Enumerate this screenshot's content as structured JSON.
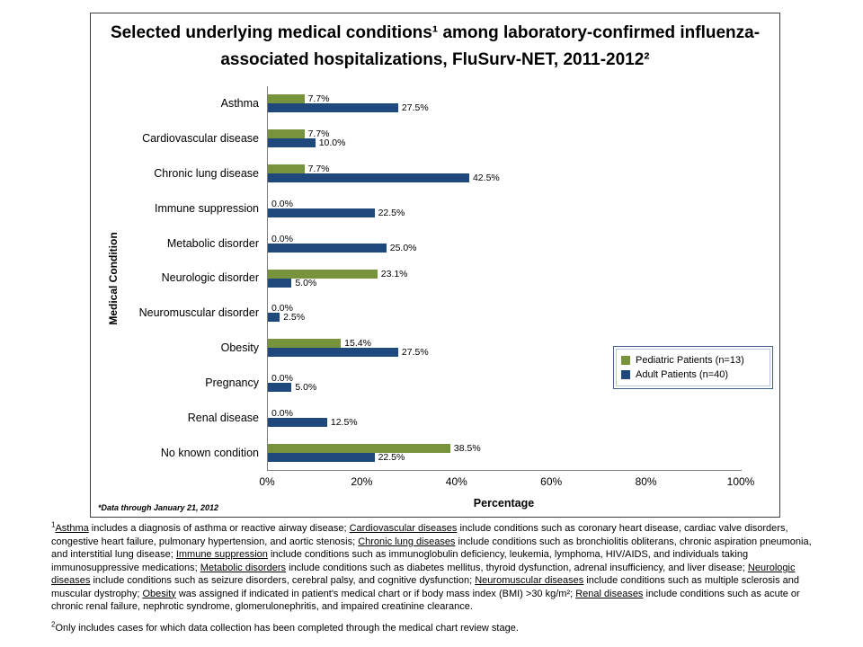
{
  "chart_data": {
    "type": "bar",
    "orientation": "horizontal",
    "title": "Selected underlying medical conditions¹ among laboratory-confirmed influenza-associated hospitalizations, FluSurv-NET, 2011-2012²",
    "xlabel": "Percentage",
    "ylabel": "Medical Condition",
    "xlim": [
      0,
      100
    ],
    "xtick_labels": [
      "0%",
      "20%",
      "40%",
      "60%",
      "80%",
      "100%"
    ],
    "grid": false,
    "legend_position": "middle-right",
    "note": "*Data through January 21, 2012",
    "categories": [
      "Asthma",
      "Cardiovascular disease",
      "Chronic lung disease",
      "Immune suppression",
      "Metabolic disorder",
      "Neurologic disorder",
      "Neuromuscular disorder",
      "Obesity",
      "Pregnancy",
      "Renal disease",
      "No known condition"
    ],
    "series": [
      {
        "name": "Pediatric Patients (n=13)",
        "color": "#77933C",
        "values": [
          7.7,
          7.7,
          7.7,
          0.0,
          0.0,
          23.1,
          0.0,
          15.4,
          0.0,
          0.0,
          38.5
        ]
      },
      {
        "name": "Adult Patients (n=40)",
        "color": "#1F497D",
        "values": [
          27.5,
          10.0,
          42.5,
          22.5,
          25.0,
          5.0,
          2.5,
          27.5,
          5.0,
          12.5,
          22.5
        ]
      }
    ]
  },
  "footnotes": [
    {
      "sup": "1",
      "segments": [
        {
          "text": "Asthma",
          "underline": true
        },
        {
          "text": " includes a diagnosis of asthma or reactive airway disease; ",
          "underline": false
        },
        {
          "text": "Cardiovascular diseases",
          "underline": true
        },
        {
          "text": " include conditions such as coronary heart disease, cardiac valve disorders, congestive heart failure, pulmonary hypertension, and aortic stenosis; ",
          "underline": false
        },
        {
          "text": "Chronic lung diseases",
          "underline": true
        },
        {
          "text": " include conditions such as bronchiolitis obliterans, chronic aspiration pneumonia, and interstitial lung disease; ",
          "underline": false
        },
        {
          "text": "Immune suppression",
          "underline": true
        },
        {
          "text": " include conditions such as immunoglobulin deficiency, leukemia, lymphoma, HIV/AIDS,  and individuals taking immunosuppressive medications; ",
          "underline": false
        },
        {
          "text": "Metabolic disorders",
          "underline": true
        },
        {
          "text": " include conditions such as diabetes mellitus, thyroid dysfunction, adrenal insufficiency, and liver disease; ",
          "underline": false
        },
        {
          "text": "Neurologic diseases",
          "underline": true
        },
        {
          "text": " include conditions such as seizure disorders, cerebral palsy, and cognitive dysfunction; ",
          "underline": false
        },
        {
          "text": "Neuromuscular diseases",
          "underline": true
        },
        {
          "text": " include conditions such as multiple sclerosis and muscular dystrophy; ",
          "underline": false
        },
        {
          "text": "Obesity",
          "underline": true
        },
        {
          "text": " was assigned if indicated in patient's medical chart or if body mass index (BMI)  >30 kg/m²;  ",
          "underline": false
        },
        {
          "text": "Renal diseases",
          "underline": true
        },
        {
          "text": " include conditions such as acute or chronic renal failure, nephrotic syndrome, glomerulonephritis, and impaired creatinine clearance.",
          "underline": false
        }
      ]
    },
    {
      "sup": "2",
      "segments": [
        {
          "text": "Only includes cases for which data collection has been completed through the medical chart review stage.",
          "underline": false
        }
      ]
    }
  ]
}
